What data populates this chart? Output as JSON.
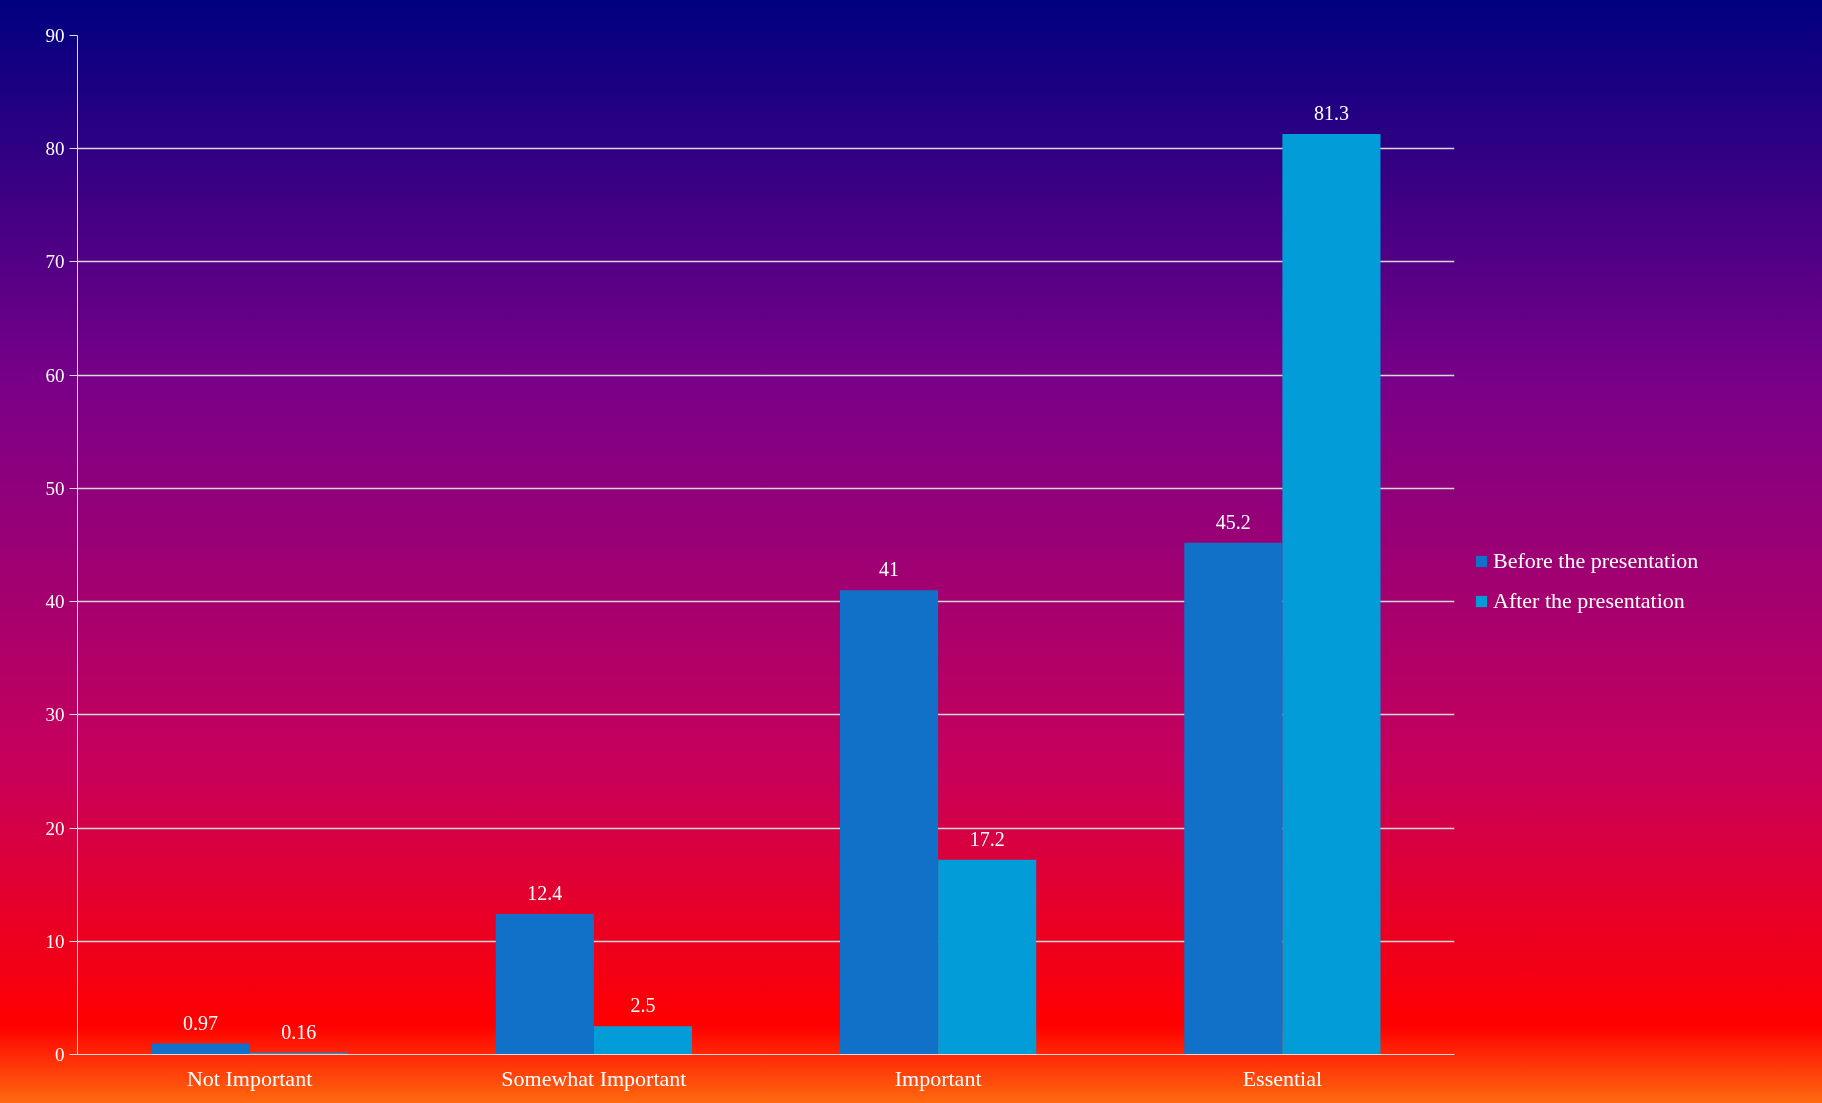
{
  "chart_data": {
    "type": "bar",
    "categories": [
      "Not Important",
      "Somewhat Important",
      "Important",
      "Essential"
    ],
    "series": [
      {
        "name": "Before the presentation",
        "color": "#1170c8",
        "values": [
          0.97,
          12.4,
          41,
          45.2
        ]
      },
      {
        "name": "After the presentation",
        "color": "#029cd9",
        "values": [
          0.16,
          2.5,
          17.2,
          81.3
        ]
      }
    ],
    "ylim": [
      0,
      90
    ],
    "yticks": [
      0,
      10,
      20,
      30,
      40,
      50,
      60,
      70,
      80,
      90
    ],
    "grid": "y",
    "legend": "right",
    "data_labels": true
  }
}
